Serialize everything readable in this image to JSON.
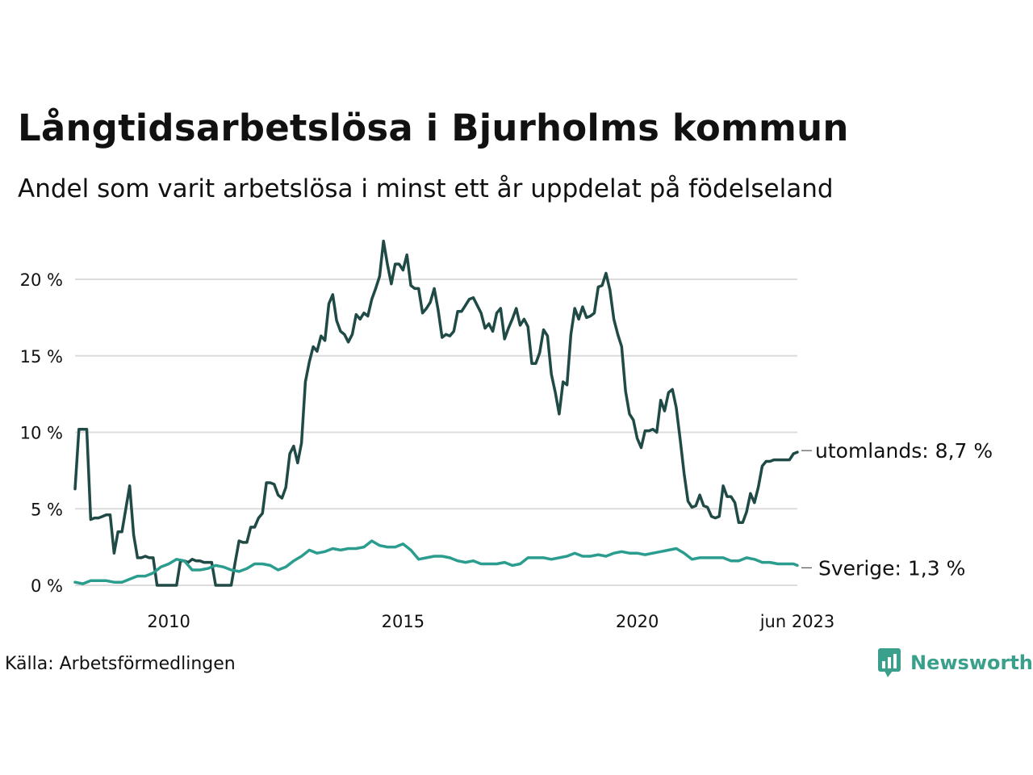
{
  "title": "Långtidsarbetslösa i Bjurholms kommun",
  "subtitle": "Andel som varit arbetslösa i minst ett år uppdelat på födelseland",
  "source": "Källa: Arbetsförmedlingen",
  "brand": {
    "name": "Newsworthy",
    "icon": "newsworthy-logo-icon",
    "color": "#3aa08c"
  },
  "chart_data": {
    "type": "line",
    "x_range": [
      "2008-01",
      "2023-06"
    ],
    "ylim": [
      0,
      22.5
    ],
    "y_ticks": [
      0,
      5,
      10,
      15,
      20
    ],
    "y_tick_labels": [
      "0 %",
      "5 %",
      "10 %",
      "15 %",
      "20 %"
    ],
    "x_tick_labels": [
      {
        "date": "2010-01",
        "label": "2010"
      },
      {
        "date": "2015-01",
        "label": "2015"
      },
      {
        "date": "2020-01",
        "label": "2020"
      },
      {
        "date": "2023-06",
        "label": "jun 2023"
      }
    ],
    "grid": true,
    "legend": "direct labels at line ends (right)",
    "series": [
      {
        "name": "utomlands",
        "end_label": "utomlands: 8,7 %",
        "color": "#1f4a45",
        "points": [
          [
            "2008-01",
            6.3
          ],
          [
            "2008-02",
            10.2
          ],
          [
            "2008-03",
            10.2
          ],
          [
            "2008-04",
            10.2
          ],
          [
            "2008-05",
            4.3
          ],
          [
            "2008-06",
            4.4
          ],
          [
            "2008-07",
            4.4
          ],
          [
            "2008-08",
            4.5
          ],
          [
            "2008-09",
            4.6
          ],
          [
            "2008-10",
            4.6
          ],
          [
            "2008-11",
            2.1
          ],
          [
            "2008-12",
            3.5
          ],
          [
            "2009-01",
            3.5
          ],
          [
            "2009-02",
            5.0
          ],
          [
            "2009-03",
            6.5
          ],
          [
            "2009-04",
            3.3
          ],
          [
            "2009-05",
            1.8
          ],
          [
            "2009-06",
            1.8
          ],
          [
            "2009-07",
            1.9
          ],
          [
            "2009-08",
            1.8
          ],
          [
            "2009-09",
            1.8
          ],
          [
            "2009-10",
            0.0
          ],
          [
            "2009-11",
            0.0
          ],
          [
            "2009-12",
            0.0
          ],
          [
            "2010-01",
            0.0
          ],
          [
            "2010-02",
            0.0
          ],
          [
            "2010-03",
            0.0
          ],
          [
            "2010-04",
            1.6
          ],
          [
            "2010-05",
            1.6
          ],
          [
            "2010-06",
            1.5
          ],
          [
            "2010-07",
            1.7
          ],
          [
            "2010-08",
            1.6
          ],
          [
            "2010-09",
            1.6
          ],
          [
            "2010-10",
            1.5
          ],
          [
            "2010-11",
            1.5
          ],
          [
            "2010-12",
            1.5
          ],
          [
            "2011-01",
            0.0
          ],
          [
            "2011-02",
            0.0
          ],
          [
            "2011-03",
            0.0
          ],
          [
            "2011-04",
            0.0
          ],
          [
            "2011-05",
            0.0
          ],
          [
            "2011-06",
            1.5
          ],
          [
            "2011-07",
            2.9
          ],
          [
            "2011-08",
            2.8
          ],
          [
            "2011-09",
            2.8
          ],
          [
            "2011-10",
            3.8
          ],
          [
            "2011-11",
            3.8
          ],
          [
            "2011-12",
            4.4
          ],
          [
            "2012-01",
            4.7
          ],
          [
            "2012-02",
            6.7
          ],
          [
            "2012-03",
            6.7
          ],
          [
            "2012-04",
            6.6
          ],
          [
            "2012-05",
            5.9
          ],
          [
            "2012-06",
            5.7
          ],
          [
            "2012-07",
            6.4
          ],
          [
            "2012-08",
            8.6
          ],
          [
            "2012-09",
            9.1
          ],
          [
            "2012-10",
            8.0
          ],
          [
            "2012-11",
            9.3
          ],
          [
            "2012-12",
            13.3
          ],
          [
            "2013-01",
            14.6
          ],
          [
            "2013-02",
            15.6
          ],
          [
            "2013-03",
            15.3
          ],
          [
            "2013-04",
            16.3
          ],
          [
            "2013-05",
            16.0
          ],
          [
            "2013-06",
            18.4
          ],
          [
            "2013-07",
            19.0
          ],
          [
            "2013-08",
            17.3
          ],
          [
            "2013-09",
            16.6
          ],
          [
            "2013-10",
            16.4
          ],
          [
            "2013-11",
            15.9
          ],
          [
            "2013-12",
            16.4
          ],
          [
            "2014-01",
            17.7
          ],
          [
            "2014-02",
            17.4
          ],
          [
            "2014-03",
            17.8
          ],
          [
            "2014-04",
            17.6
          ],
          [
            "2014-05",
            18.7
          ],
          [
            "2014-06",
            19.4
          ],
          [
            "2014-07",
            20.2
          ],
          [
            "2014-08",
            22.5
          ],
          [
            "2014-09",
            21.0
          ],
          [
            "2014-10",
            19.7
          ],
          [
            "2014-11",
            21.0
          ],
          [
            "2014-12",
            21.0
          ],
          [
            "2015-01",
            20.6
          ],
          [
            "2015-02",
            21.6
          ],
          [
            "2015-03",
            19.6
          ],
          [
            "2015-04",
            19.4
          ],
          [
            "2015-05",
            19.4
          ],
          [
            "2015-06",
            17.8
          ],
          [
            "2015-07",
            18.1
          ],
          [
            "2015-08",
            18.5
          ],
          [
            "2015-09",
            19.4
          ],
          [
            "2015-10",
            18.0
          ],
          [
            "2015-11",
            16.2
          ],
          [
            "2015-12",
            16.4
          ],
          [
            "2016-01",
            16.3
          ],
          [
            "2016-02",
            16.6
          ],
          [
            "2016-03",
            17.9
          ],
          [
            "2016-04",
            17.9
          ],
          [
            "2016-05",
            18.3
          ],
          [
            "2016-06",
            18.7
          ],
          [
            "2016-07",
            18.8
          ],
          [
            "2016-08",
            18.3
          ],
          [
            "2016-09",
            17.8
          ],
          [
            "2016-10",
            16.8
          ],
          [
            "2016-11",
            17.1
          ],
          [
            "2016-12",
            16.6
          ],
          [
            "2017-01",
            17.8
          ],
          [
            "2017-02",
            18.1
          ],
          [
            "2017-03",
            16.1
          ],
          [
            "2017-04",
            16.8
          ],
          [
            "2017-05",
            17.4
          ],
          [
            "2017-06",
            18.1
          ],
          [
            "2017-07",
            17.0
          ],
          [
            "2017-08",
            17.4
          ],
          [
            "2017-09",
            16.9
          ],
          [
            "2017-10",
            14.5
          ],
          [
            "2017-11",
            14.5
          ],
          [
            "2017-12",
            15.2
          ],
          [
            "2018-01",
            16.7
          ],
          [
            "2018-02",
            16.3
          ],
          [
            "2018-03",
            13.8
          ],
          [
            "2018-04",
            12.6
          ],
          [
            "2018-05",
            11.2
          ],
          [
            "2018-06",
            13.3
          ],
          [
            "2018-07",
            13.1
          ],
          [
            "2018-08",
            16.4
          ],
          [
            "2018-09",
            18.1
          ],
          [
            "2018-10",
            17.4
          ],
          [
            "2018-11",
            18.2
          ],
          [
            "2018-12",
            17.5
          ],
          [
            "2019-01",
            17.6
          ],
          [
            "2019-02",
            17.8
          ],
          [
            "2019-03",
            19.5
          ],
          [
            "2019-04",
            19.6
          ],
          [
            "2019-05",
            20.4
          ],
          [
            "2019-06",
            19.3
          ],
          [
            "2019-07",
            17.4
          ],
          [
            "2019-08",
            16.4
          ],
          [
            "2019-09",
            15.6
          ],
          [
            "2019-10",
            12.7
          ],
          [
            "2019-11",
            11.2
          ],
          [
            "2019-12",
            10.8
          ],
          [
            "2020-01",
            9.6
          ],
          [
            "2020-02",
            9.0
          ],
          [
            "2020-03",
            10.1
          ],
          [
            "2020-04",
            10.1
          ],
          [
            "2020-05",
            10.2
          ],
          [
            "2020-06",
            10.0
          ],
          [
            "2020-07",
            12.1
          ],
          [
            "2020-08",
            11.4
          ],
          [
            "2020-09",
            12.6
          ],
          [
            "2020-10",
            12.8
          ],
          [
            "2020-11",
            11.6
          ],
          [
            "2020-12",
            9.5
          ],
          [
            "2021-01",
            7.3
          ],
          [
            "2021-02",
            5.5
          ],
          [
            "2021-03",
            5.1
          ],
          [
            "2021-04",
            5.2
          ],
          [
            "2021-05",
            5.9
          ],
          [
            "2021-06",
            5.2
          ],
          [
            "2021-07",
            5.1
          ],
          [
            "2021-08",
            4.5
          ],
          [
            "2021-09",
            4.4
          ],
          [
            "2021-10",
            4.5
          ],
          [
            "2021-11",
            6.5
          ],
          [
            "2021-12",
            5.8
          ],
          [
            "2022-01",
            5.8
          ],
          [
            "2022-02",
            5.4
          ],
          [
            "2022-03",
            4.1
          ],
          [
            "2022-04",
            4.1
          ],
          [
            "2022-05",
            4.8
          ],
          [
            "2022-06",
            6.0
          ],
          [
            "2022-07",
            5.4
          ],
          [
            "2022-08",
            6.4
          ],
          [
            "2022-09",
            7.8
          ],
          [
            "2022-10",
            8.1
          ],
          [
            "2022-11",
            8.1
          ],
          [
            "2022-12",
            8.2
          ],
          [
            "2023-01",
            8.2
          ],
          [
            "2023-02",
            8.2
          ],
          [
            "2023-03",
            8.2
          ],
          [
            "2023-04",
            8.2
          ],
          [
            "2023-05",
            8.6
          ],
          [
            "2023-06",
            8.7
          ]
        ]
      },
      {
        "name": "Sverige",
        "end_label": "Sverige: 1,3 %",
        "color": "#2a9d8f",
        "points": [
          [
            "2008-01",
            0.2
          ],
          [
            "2008-03",
            0.1
          ],
          [
            "2008-05",
            0.3
          ],
          [
            "2008-07",
            0.3
          ],
          [
            "2008-09",
            0.3
          ],
          [
            "2008-11",
            0.2
          ],
          [
            "2009-01",
            0.2
          ],
          [
            "2009-03",
            0.4
          ],
          [
            "2009-05",
            0.6
          ],
          [
            "2009-07",
            0.6
          ],
          [
            "2009-09",
            0.8
          ],
          [
            "2009-11",
            1.2
          ],
          [
            "2010-01",
            1.4
          ],
          [
            "2010-03",
            1.7
          ],
          [
            "2010-05",
            1.6
          ],
          [
            "2010-07",
            1.0
          ],
          [
            "2010-09",
            1.0
          ],
          [
            "2010-11",
            1.1
          ],
          [
            "2011-01",
            1.3
          ],
          [
            "2011-03",
            1.2
          ],
          [
            "2011-05",
            1.0
          ],
          [
            "2011-07",
            0.9
          ],
          [
            "2011-09",
            1.1
          ],
          [
            "2011-11",
            1.4
          ],
          [
            "2012-01",
            1.4
          ],
          [
            "2012-03",
            1.3
          ],
          [
            "2012-05",
            1.0
          ],
          [
            "2012-07",
            1.2
          ],
          [
            "2012-09",
            1.6
          ],
          [
            "2012-11",
            1.9
          ],
          [
            "2013-01",
            2.3
          ],
          [
            "2013-03",
            2.1
          ],
          [
            "2013-05",
            2.2
          ],
          [
            "2013-07",
            2.4
          ],
          [
            "2013-09",
            2.3
          ],
          [
            "2013-11",
            2.4
          ],
          [
            "2014-01",
            2.4
          ],
          [
            "2014-03",
            2.5
          ],
          [
            "2014-05",
            2.9
          ],
          [
            "2014-07",
            2.6
          ],
          [
            "2014-09",
            2.5
          ],
          [
            "2014-11",
            2.5
          ],
          [
            "2015-01",
            2.7
          ],
          [
            "2015-03",
            2.3
          ],
          [
            "2015-05",
            1.7
          ],
          [
            "2015-07",
            1.8
          ],
          [
            "2015-09",
            1.9
          ],
          [
            "2015-11",
            1.9
          ],
          [
            "2016-01",
            1.8
          ],
          [
            "2016-03",
            1.6
          ],
          [
            "2016-05",
            1.5
          ],
          [
            "2016-07",
            1.6
          ],
          [
            "2016-09",
            1.4
          ],
          [
            "2016-11",
            1.4
          ],
          [
            "2017-01",
            1.4
          ],
          [
            "2017-03",
            1.5
          ],
          [
            "2017-05",
            1.3
          ],
          [
            "2017-07",
            1.4
          ],
          [
            "2017-09",
            1.8
          ],
          [
            "2017-11",
            1.8
          ],
          [
            "2018-01",
            1.8
          ],
          [
            "2018-03",
            1.7
          ],
          [
            "2018-05",
            1.8
          ],
          [
            "2018-07",
            1.9
          ],
          [
            "2018-09",
            2.1
          ],
          [
            "2018-11",
            1.9
          ],
          [
            "2019-01",
            1.9
          ],
          [
            "2019-03",
            2.0
          ],
          [
            "2019-05",
            1.9
          ],
          [
            "2019-07",
            2.1
          ],
          [
            "2019-09",
            2.2
          ],
          [
            "2019-11",
            2.1
          ],
          [
            "2020-01",
            2.1
          ],
          [
            "2020-03",
            2.0
          ],
          [
            "2020-05",
            2.1
          ],
          [
            "2020-07",
            2.2
          ],
          [
            "2020-09",
            2.3
          ],
          [
            "2020-11",
            2.4
          ],
          [
            "2021-01",
            2.1
          ],
          [
            "2021-03",
            1.7
          ],
          [
            "2021-05",
            1.8
          ],
          [
            "2021-07",
            1.8
          ],
          [
            "2021-09",
            1.8
          ],
          [
            "2021-11",
            1.8
          ],
          [
            "2022-01",
            1.6
          ],
          [
            "2022-03",
            1.6
          ],
          [
            "2022-05",
            1.8
          ],
          [
            "2022-07",
            1.7
          ],
          [
            "2022-09",
            1.5
          ],
          [
            "2022-11",
            1.5
          ],
          [
            "2023-01",
            1.4
          ],
          [
            "2023-03",
            1.4
          ],
          [
            "2023-05",
            1.4
          ],
          [
            "2023-06",
            1.3
          ]
        ]
      }
    ]
  }
}
